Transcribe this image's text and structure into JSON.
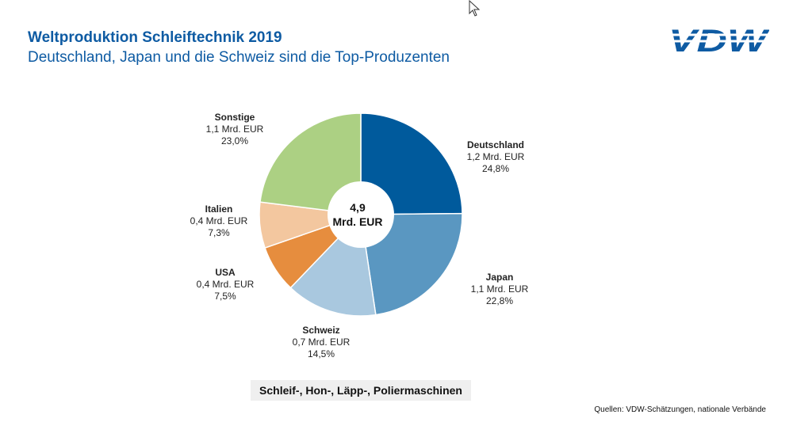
{
  "header": {
    "title": "Weltproduktion Schleiftechnik 2019",
    "subtitle": "Deutschland, Japan und die Schweiz sind die Top-Produzenten"
  },
  "logo": {
    "text": "VDW",
    "color": "#0e5ba3"
  },
  "chart_data": {
    "type": "pie",
    "variant": "donut",
    "title": "Weltproduktion Schleiftechnik 2019",
    "center_label": {
      "value": "4,9",
      "unit": "Mrd. EUR"
    },
    "categories": [
      "Deutschland",
      "Japan",
      "Schweiz",
      "USA",
      "Italien",
      "Sonstige"
    ],
    "values": [
      24.8,
      22.8,
      14.5,
      7.5,
      7.3,
      23.0
    ],
    "slices": [
      {
        "name": "Deutschland",
        "amount": "1,2 Mrd. EUR",
        "percent": "24,8%",
        "value": 24.8,
        "color": "#005a9c"
      },
      {
        "name": "Japan",
        "amount": "1,1 Mrd. EUR",
        "percent": "22,8%",
        "value": 22.8,
        "color": "#5a97c1"
      },
      {
        "name": "Schweiz",
        "amount": "0,7 Mrd. EUR",
        "percent": "14,5%",
        "value": 14.5,
        "color": "#a9c8df"
      },
      {
        "name": "USA",
        "amount": "0,4 Mrd. EUR",
        "percent": "7,5%",
        "value": 7.5,
        "color": "#e68d3e"
      },
      {
        "name": "Italien",
        "amount": "0,4 Mrd. EUR",
        "percent": "7,3%",
        "value": 7.3,
        "color": "#f3c79f"
      },
      {
        "name": "Sonstige",
        "amount": "1,1 Mrd. EUR",
        "percent": "23,0%",
        "value": 23.0,
        "color": "#acd083"
      }
    ]
  },
  "caption": "Schleif-, Hon-, Läpp-, Poliermaschinen",
  "source": "Quellen: VDW-Schätzungen, nationale Verbände"
}
